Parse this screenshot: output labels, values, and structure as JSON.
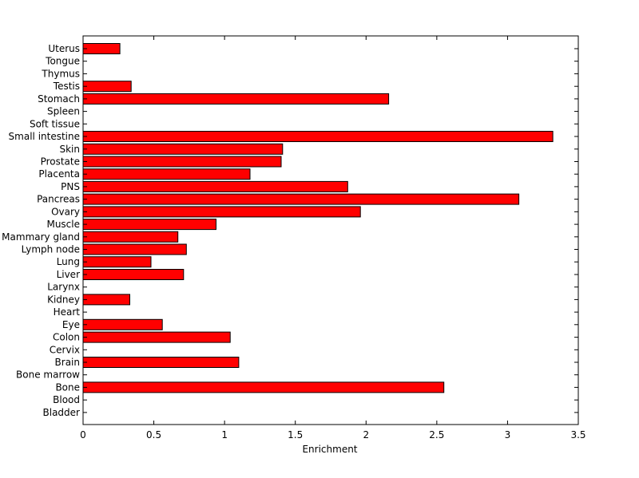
{
  "chart_data": {
    "type": "bar",
    "orientation": "horizontal",
    "title": "",
    "xlabel": "Enrichment",
    "ylabel": "",
    "xlim": [
      0,
      3.5
    ],
    "xticks": [
      0,
      0.5,
      1,
      1.5,
      2,
      2.5,
      3,
      3.5
    ],
    "xtick_labels": [
      "0",
      "0.5",
      "1",
      "1.5",
      "2",
      "2.5",
      "3",
      "3.5"
    ],
    "grid": false,
    "legend": "none",
    "bar_color": "#ff0000",
    "categories": [
      "Uterus",
      "Tongue",
      "Thymus",
      "Testis",
      "Stomach",
      "Spleen",
      "Soft tissue",
      "Small intestine",
      "Skin",
      "Prostate",
      "Placenta",
      "PNS",
      "Pancreas",
      "Ovary",
      "Muscle",
      "Mammary gland",
      "Lymph node",
      "Lung",
      "Liver",
      "Larynx",
      "Kidney",
      "Heart",
      "Eye",
      "Colon",
      "Cervix",
      "Brain",
      "Bone marrow",
      "Bone",
      "Blood",
      "Bladder"
    ],
    "values": [
      0.26,
      0,
      0,
      0.34,
      2.16,
      0,
      0,
      3.32,
      1.41,
      1.4,
      1.18,
      1.87,
      3.08,
      1.96,
      0.94,
      0.67,
      0.73,
      0.48,
      0.71,
      0,
      0.33,
      0,
      0.56,
      1.04,
      0,
      1.1,
      0,
      2.55,
      0,
      0
    ]
  }
}
